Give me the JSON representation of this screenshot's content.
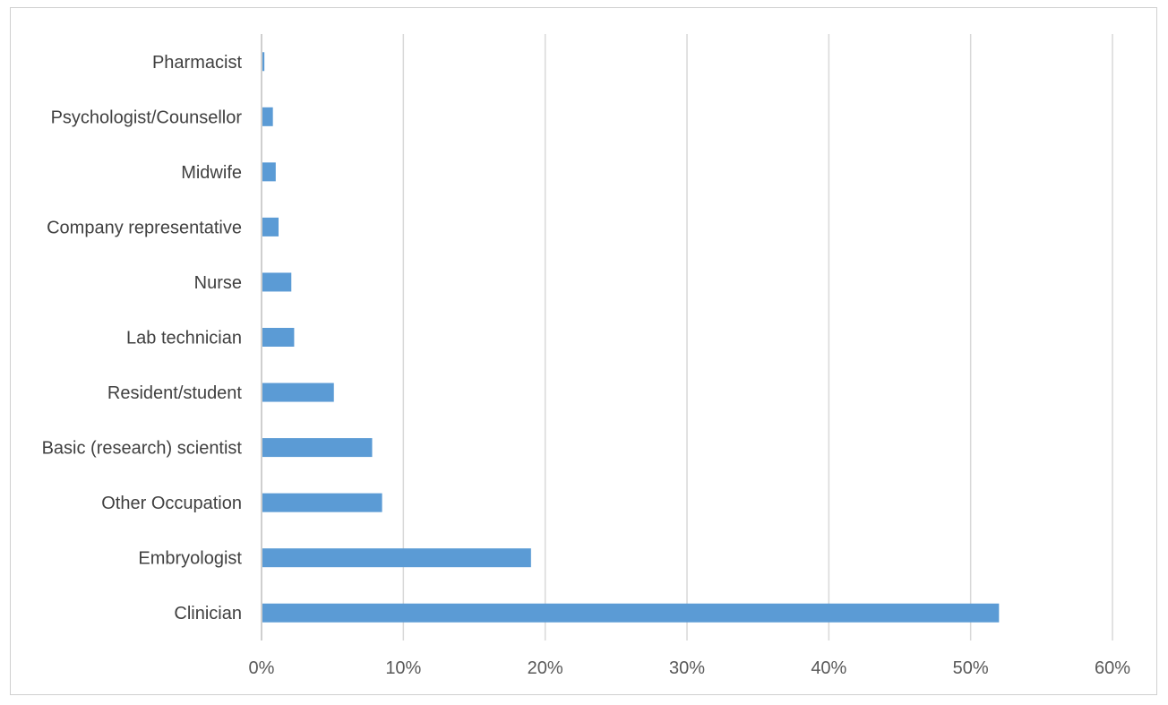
{
  "chart_data": {
    "type": "bar",
    "orientation": "horizontal",
    "title": "",
    "xlabel": "",
    "ylabel": "",
    "categories": [
      "Clinician",
      "Embryologist",
      "Other Occupation",
      "Basic (research) scientist",
      "Resident/student",
      "Lab technician",
      "Nurse",
      "Company representative",
      "Midwife",
      "Psychologist/Counsellor",
      "Pharmacist"
    ],
    "values": [
      52.0,
      19.0,
      8.5,
      7.8,
      5.1,
      2.3,
      2.1,
      1.2,
      1.0,
      0.8,
      0.2
    ],
    "xlim": [
      0,
      60
    ],
    "ticks": [
      0,
      10,
      20,
      30,
      40,
      50,
      60
    ],
    "tick_labels": [
      "0%",
      "10%",
      "20%",
      "30%",
      "40%",
      "50%",
      "60%"
    ],
    "grid": "vertical",
    "bar_color": "#5b9bd5",
    "legend": "none"
  }
}
